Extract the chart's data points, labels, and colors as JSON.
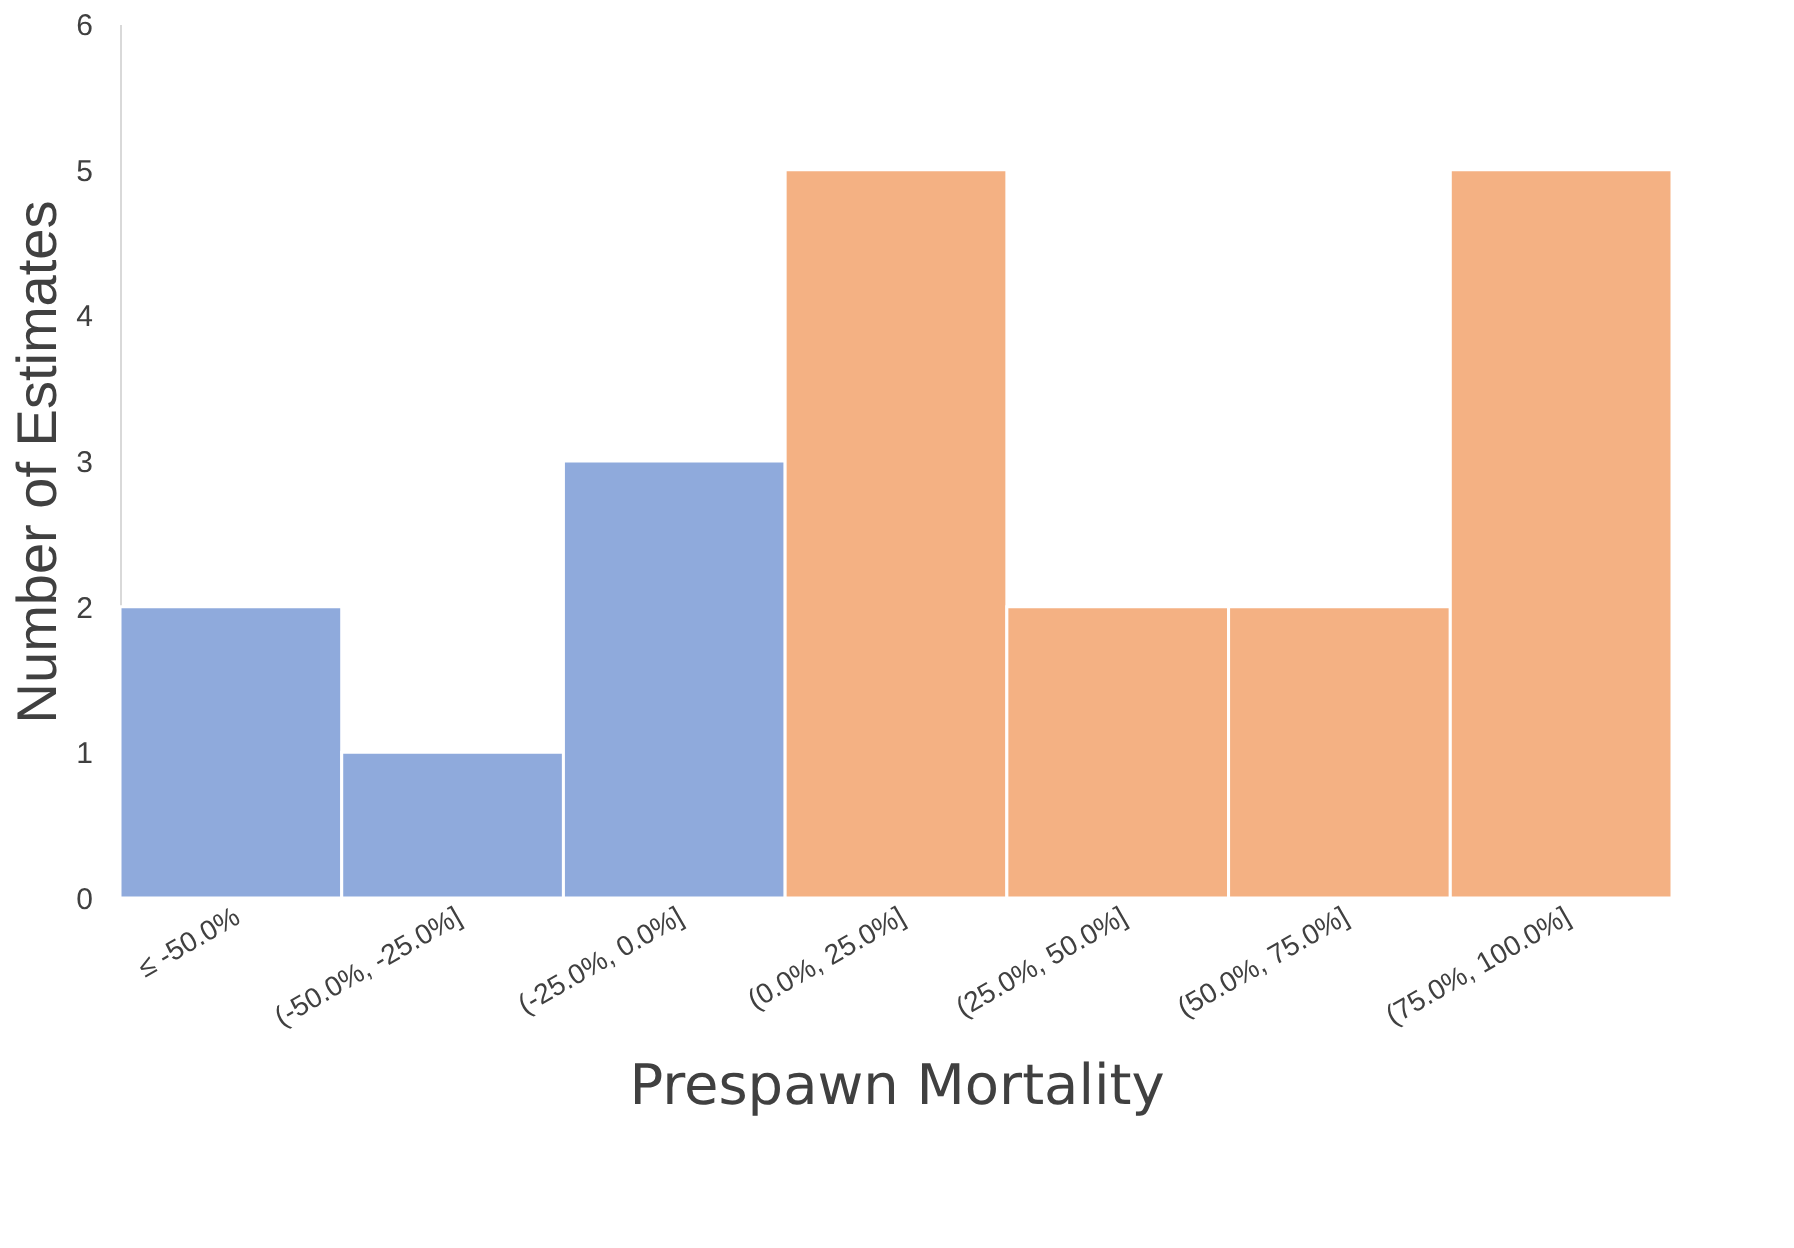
{
  "chart_data": {
    "type": "bar",
    "categories": [
      "≤ -50.0%",
      "(-50.0%, -25.0%]",
      "(-25.0%, 0.0%]",
      "(0.0%, 25.0%]",
      "(25.0%, 50.0%]",
      "(50.0%, 75.0%]",
      "(75.0%, 100.0%]"
    ],
    "values": [
      2,
      1,
      3,
      5,
      2,
      2,
      5
    ],
    "colors": [
      "#8faadc",
      "#8faadc",
      "#8faadc",
      "#f4b183",
      "#f4b183",
      "#f4b183",
      "#f4b183"
    ],
    "xlabel": "Prespawn Mortality",
    "ylabel": "Number of Estimates",
    "ylim": [
      0,
      6
    ],
    "yticks": [
      0,
      1,
      2,
      3,
      4,
      5,
      6
    ],
    "grid": false,
    "legend": false
  }
}
